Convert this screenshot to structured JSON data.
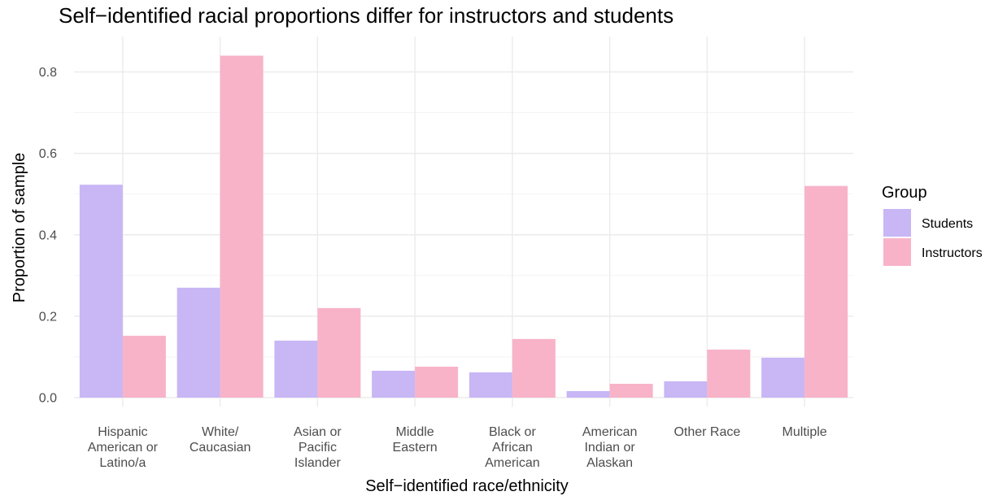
{
  "chart_data": {
    "type": "bar",
    "title": "Self−identified racial proportions differ for instructors and students",
    "xlabel": "Self−identified race/ethnicity",
    "ylabel": "Proportion of sample",
    "ylim": [
      0,
      0.88
    ],
    "yticks": [
      "0.0",
      "0.2",
      "0.4",
      "0.6",
      "0.8"
    ],
    "grid": true,
    "legend_position": "right",
    "legend_title": "Group",
    "categories": [
      [
        "Hispanic",
        "American or",
        "Latino/a"
      ],
      [
        "White/",
        "Caucasian"
      ],
      [
        "Asian or",
        "Pacific",
        "Islander"
      ],
      [
        "Middle",
        "Eastern"
      ],
      [
        "Black or",
        "African",
        "American"
      ],
      [
        "American",
        "Indian or",
        "Alaskan"
      ],
      [
        "Other Race"
      ],
      [
        "Multiple"
      ]
    ],
    "series": [
      {
        "name": "Students",
        "color": "#c8b6f5",
        "values": [
          0.523,
          0.27,
          0.14,
          0.066,
          0.062,
          0.016,
          0.04,
          0.098
        ]
      },
      {
        "name": "Instructors",
        "color": "#f8b3c9",
        "values": [
          0.152,
          0.84,
          0.22,
          0.076,
          0.144,
          0.034,
          0.118,
          0.52
        ]
      }
    ]
  }
}
